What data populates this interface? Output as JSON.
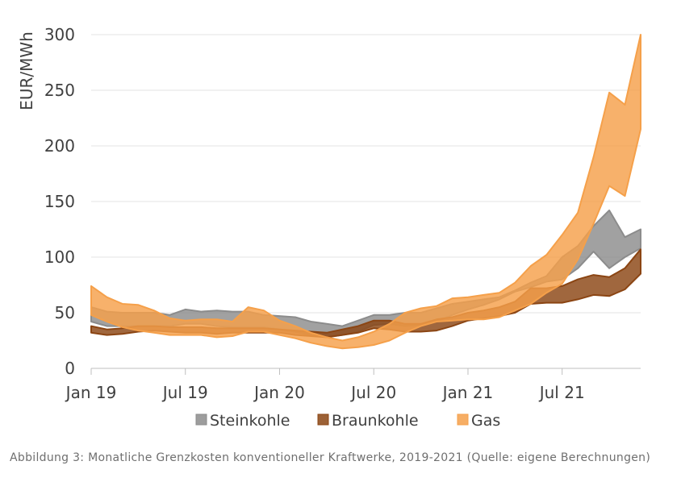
{
  "caption": "Abbildung 3: Monatliche Grenzkosten konventioneller Kraftwerke, 2019-2021 (Quelle: eigene Berechnungen)",
  "chart_data": {
    "type": "area",
    "subtype": "band (min-max range per month)",
    "ylabel": "EUR/MWh",
    "xlabel": "",
    "ylim": [
      0,
      300
    ],
    "yticks": [
      0,
      50,
      100,
      150,
      200,
      250,
      300
    ],
    "x_tick_labels": [
      "Jan 19",
      "Jul 19",
      "Jan 20",
      "Jul 20",
      "Jan 21",
      "Jul 21"
    ],
    "x_months": [
      "2019-01",
      "2019-02",
      "2019-03",
      "2019-04",
      "2019-05",
      "2019-06",
      "2019-07",
      "2019-08",
      "2019-09",
      "2019-10",
      "2019-11",
      "2019-12",
      "2020-01",
      "2020-02",
      "2020-03",
      "2020-04",
      "2020-05",
      "2020-06",
      "2020-07",
      "2020-08",
      "2020-09",
      "2020-10",
      "2020-11",
      "2020-12",
      "2021-01",
      "2021-02",
      "2021-03",
      "2021-04",
      "2021-05",
      "2021-06",
      "2021-07",
      "2021-08",
      "2021-09",
      "2021-10",
      "2021-11",
      "2021-12"
    ],
    "grid": "horizontal",
    "legend_position": "bottom",
    "series": [
      {
        "name": "Steinkohle",
        "color": "#8c8c8c",
        "lower": [
          42,
          38,
          38,
          38,
          38,
          38,
          40,
          40,
          38,
          37,
          37,
          37,
          35,
          33,
          30,
          28,
          30,
          33,
          39,
          40,
          38,
          39,
          42,
          48,
          53,
          57,
          62,
          69,
          73,
          78,
          80,
          90,
          105,
          90,
          100,
          108
        ],
        "upper": [
          55,
          51,
          50,
          50,
          50,
          48,
          53,
          51,
          52,
          51,
          51,
          48,
          47,
          46,
          42,
          40,
          38,
          43,
          48,
          48,
          50,
          50,
          54,
          58,
          60,
          62,
          64,
          70,
          77,
          83,
          100,
          110,
          128,
          142,
          118,
          125
        ]
      },
      {
        "name": "Braunkohle",
        "color": "#8b4513",
        "lower": [
          32,
          30,
          31,
          33,
          34,
          33,
          32,
          32,
          31,
          32,
          32,
          32,
          32,
          30,
          29,
          28,
          30,
          32,
          36,
          35,
          33,
          33,
          34,
          38,
          43,
          45,
          47,
          50,
          58,
          59,
          59,
          62,
          66,
          65,
          71,
          85
        ],
        "upper": [
          38,
          35,
          36,
          38,
          38,
          37,
          37,
          37,
          36,
          36,
          36,
          36,
          35,
          34,
          33,
          32,
          35,
          38,
          43,
          43,
          40,
          40,
          44,
          46,
          50,
          52,
          55,
          60,
          72,
          72,
          74,
          80,
          84,
          82,
          90,
          107
        ]
      },
      {
        "name": "Gas",
        "color": "#f5a04a",
        "lower": [
          48,
          42,
          37,
          34,
          32,
          30,
          30,
          30,
          28,
          29,
          33,
          33,
          30,
          27,
          23,
          20,
          18,
          19,
          21,
          25,
          32,
          38,
          42,
          43,
          44,
          44,
          46,
          52,
          58,
          68,
          76,
          98,
          130,
          164,
          155,
          215
        ],
        "upper": [
          74,
          64,
          58,
          57,
          52,
          45,
          43,
          44,
          44,
          42,
          55,
          52,
          43,
          38,
          32,
          28,
          25,
          28,
          33,
          40,
          50,
          54,
          56,
          63,
          64,
          66,
          68,
          77,
          92,
          102,
          120,
          140,
          190,
          248,
          237,
          300
        ]
      }
    ]
  }
}
